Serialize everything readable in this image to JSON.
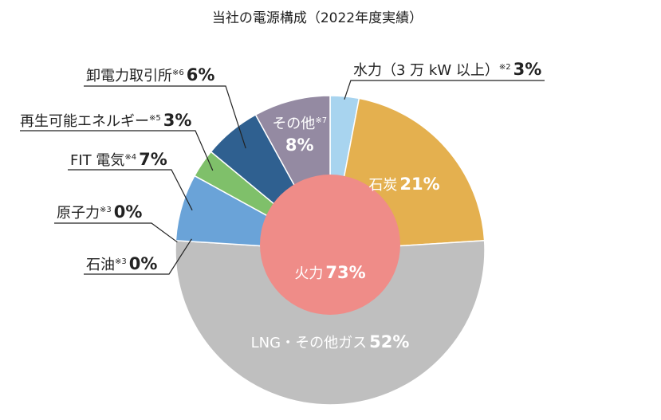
{
  "chart_data": {
    "type": "pie",
    "title": "当社の電源構成（2022年度実績）",
    "slices": [
      {
        "key": "hydro",
        "label": "水力（3 万 kW 以上）",
        "note": "※2",
        "value": 3,
        "value_label": "3%",
        "color": "#a8d4ef"
      },
      {
        "key": "coal",
        "label": "石炭",
        "note": "",
        "value": 21,
        "value_label": "21%",
        "color": "#e4b04f"
      },
      {
        "key": "lng",
        "label": "LNG・その他ガス",
        "note": "",
        "value": 52,
        "value_label": "52%",
        "color": "#bfbfbf"
      },
      {
        "key": "oil",
        "label": "石油",
        "note": "※3",
        "value": 0,
        "value_label": "0%",
        "color": "#6aa3d8"
      },
      {
        "key": "nuclear",
        "label": "原子力",
        "note": "※3",
        "value": 0,
        "value_label": "0%",
        "color": "#6aa3d8"
      },
      {
        "key": "fit",
        "label": "FIT 電気",
        "note": "※4",
        "value": 7,
        "value_label": "7%",
        "color": "#6aa3d8"
      },
      {
        "key": "renewable",
        "label": "再生可能エネルギー",
        "note": "※5",
        "value": 3,
        "value_label": "3%",
        "color": "#7fc06a"
      },
      {
        "key": "jepx",
        "label": "卸電力取引所",
        "note": "※6",
        "value": 6,
        "value_label": "6%",
        "color": "#2f6090"
      },
      {
        "key": "other",
        "label": "その他",
        "note": "※7",
        "value": 8,
        "value_label": "8%",
        "color": "#948aa2"
      }
    ],
    "inner": {
      "label": "火力",
      "value": 73,
      "value_label": "73%",
      "color": "#ef8c88"
    }
  }
}
